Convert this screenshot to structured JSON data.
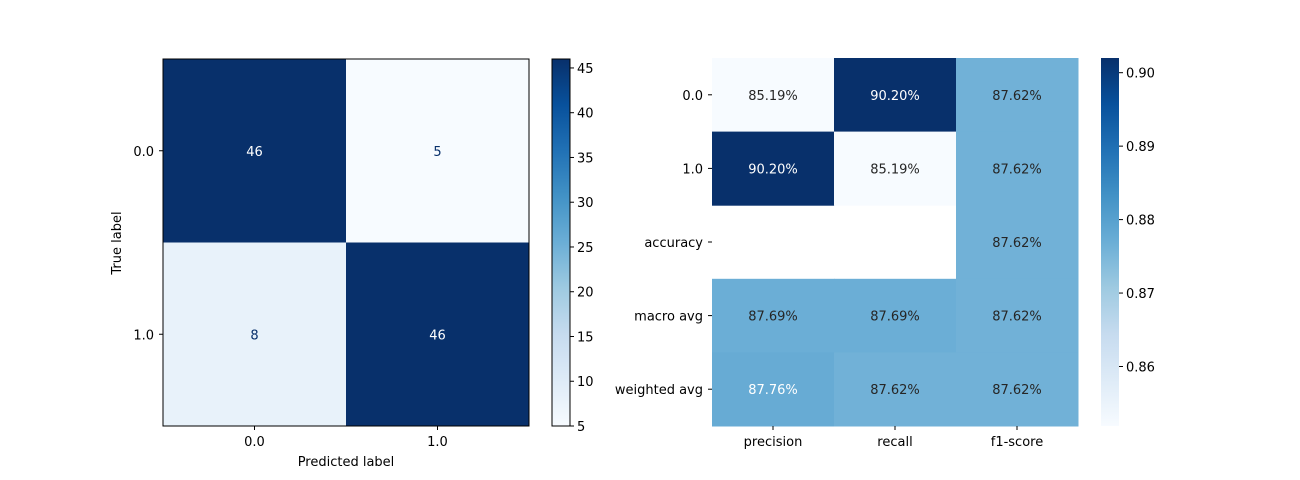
{
  "chart_data": [
    {
      "type": "heatmap",
      "title": "",
      "xlabel": "Predicted label",
      "ylabel": "True label",
      "x_categories": [
        "0.0",
        "1.0"
      ],
      "y_categories": [
        "0.0",
        "1.0"
      ],
      "values": [
        [
          46,
          5
        ],
        [
          8,
          46
        ]
      ],
      "cell_labels": [
        [
          "46",
          "5"
        ],
        [
          "8",
          "46"
        ]
      ],
      "colormap": "Blues",
      "colorbar": {
        "range": [
          5,
          46
        ],
        "ticks": [
          5,
          10,
          15,
          20,
          25,
          30,
          35,
          40,
          45
        ],
        "tick_labels": [
          "5",
          "10",
          "15",
          "20",
          "25",
          "30",
          "35",
          "40",
          "45"
        ]
      }
    },
    {
      "type": "heatmap",
      "title": "",
      "xlabel": "",
      "ylabel": "",
      "x_categories": [
        "precision",
        "recall",
        "f1-score"
      ],
      "y_categories": [
        "0.0",
        "1.0",
        "accuracy",
        "macro avg",
        "weighted avg"
      ],
      "values": [
        [
          0.8519,
          0.902,
          0.8762
        ],
        [
          0.902,
          0.8519,
          0.8762
        ],
        [
          null,
          null,
          0.8762
        ],
        [
          0.8769,
          0.8769,
          0.8762
        ],
        [
          0.8776,
          0.8762,
          0.8762
        ]
      ],
      "cell_labels": [
        [
          "85.19%",
          "90.20%",
          "87.62%"
        ],
        [
          "90.20%",
          "85.19%",
          "87.62%"
        ],
        [
          "",
          "",
          "87.62%"
        ],
        [
          "87.69%",
          "87.69%",
          "87.62%"
        ],
        [
          "87.76%",
          "87.62%",
          "87.62%"
        ]
      ],
      "colormap": "Blues",
      "colorbar": {
        "range": [
          0.8519,
          0.902
        ],
        "ticks": [
          0.86,
          0.87,
          0.88,
          0.89,
          0.9
        ],
        "tick_labels": [
          "0.86",
          "0.87",
          "0.88",
          "0.89",
          "0.90"
        ]
      }
    }
  ]
}
